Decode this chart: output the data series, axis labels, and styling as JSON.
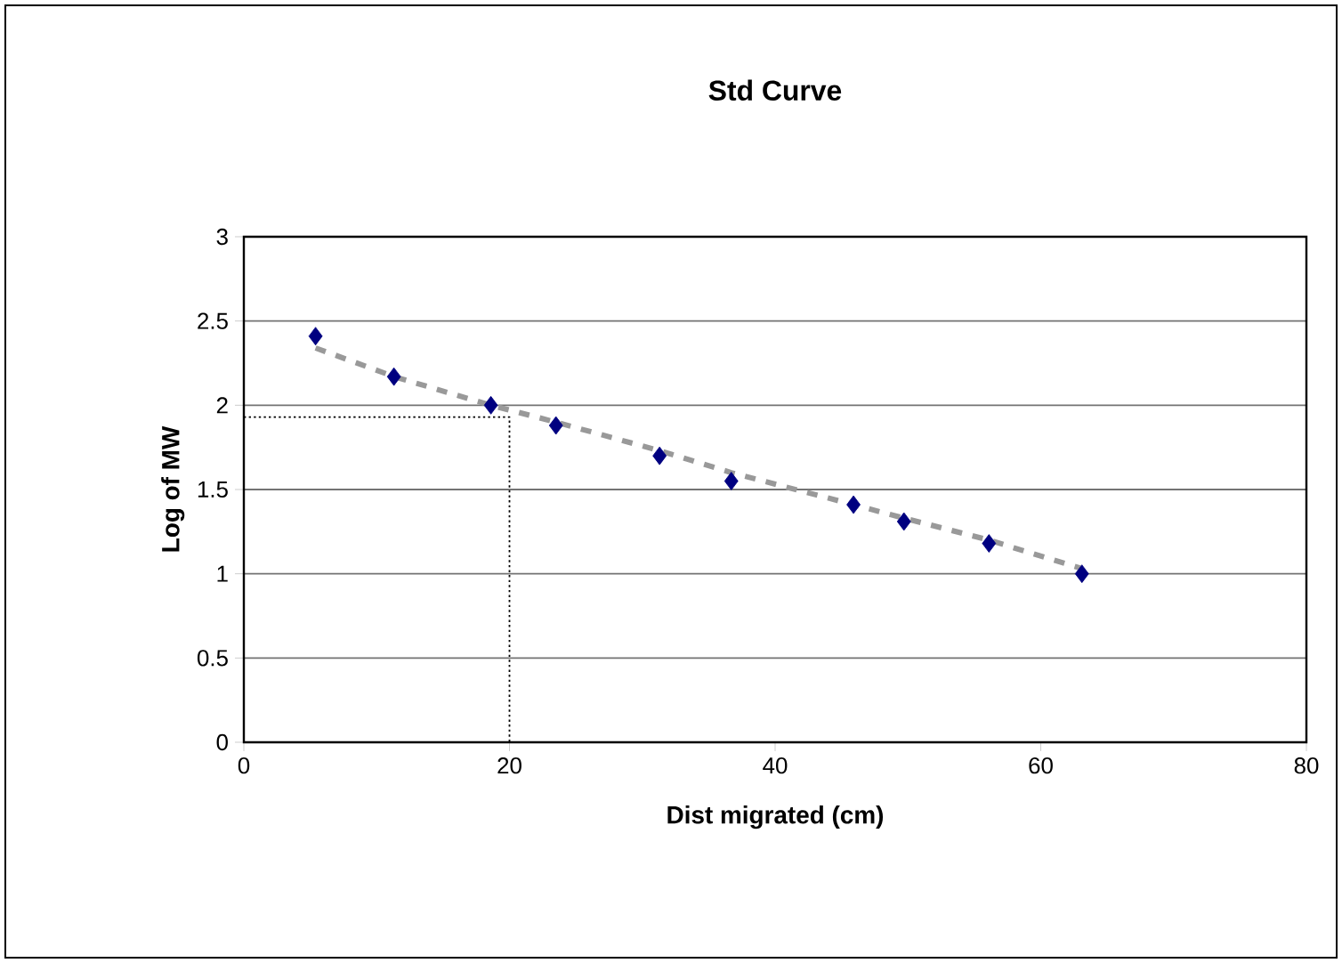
{
  "chart_data": {
    "type": "scatter",
    "title": "Std Curve",
    "xlabel": "Dist migrated (cm)",
    "ylabel": "Log of MW",
    "xlim": [
      0,
      80
    ],
    "xticks": [
      0,
      20,
      40,
      60,
      80
    ],
    "ylim": [
      0,
      3
    ],
    "yticks": [
      0,
      0.5,
      1,
      1.5,
      2,
      2.5,
      3
    ],
    "grid": "y",
    "series": [
      {
        "color": "#000080",
        "marker": "diamond",
        "x": [
          5.4,
          11.3,
          18.6,
          23.5,
          31.3,
          36.7,
          45.9,
          49.7,
          56.1,
          63.1
        ],
        "values": [
          2.41,
          2.17,
          2.0,
          1.88,
          1.7,
          1.55,
          1.41,
          1.31,
          1.18,
          1.0
        ]
      },
      {
        "type": "line",
        "color": "#999999",
        "line_style": "dashed",
        "marker": "none",
        "x": [
          5.4,
          11.3,
          18.6,
          23.5,
          31.3,
          36.7,
          45.9,
          49.7,
          56.1,
          63.1
        ],
        "values": [
          2.34,
          2.17,
          2.0,
          1.9,
          1.73,
          1.6,
          1.41,
          1.33,
          1.2,
          1.03
        ]
      },
      {
        "type": "line",
        "color": "#000000",
        "line_style": "dotted",
        "marker": "none",
        "x": [
          0,
          20,
          20
        ],
        "values": [
          1.93,
          1.93,
          0
        ]
      }
    ]
  }
}
